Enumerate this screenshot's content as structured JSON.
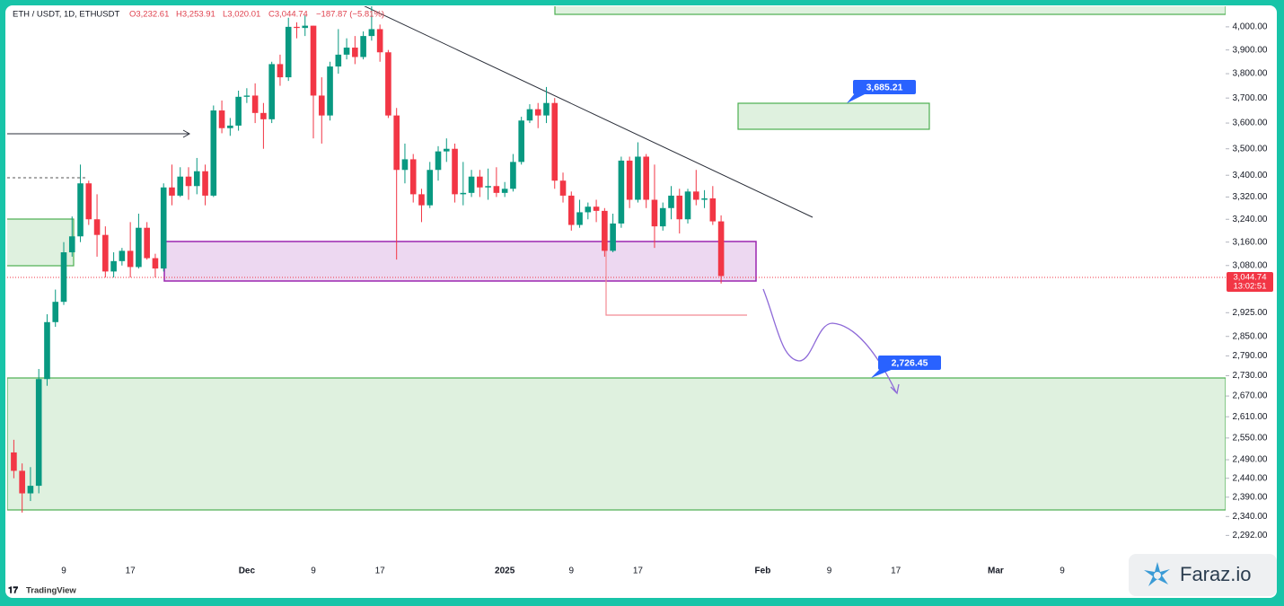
{
  "chart_data": {
    "type": "candlestick",
    "title": "ETH / USDT, 1D, ETHUSDT",
    "ohlc_header": [
      "O3,232.61",
      "H3,253.91",
      "L3,020.01",
      "C3,044.74",
      "−187.87 (−5.81%)"
    ],
    "categories": [
      null,
      null,
      null,
      null,
      null,
      null,
      "9",
      null,
      null,
      null,
      null,
      null,
      null,
      null,
      "17",
      null,
      null,
      null,
      null,
      null,
      null,
      null,
      null,
      null,
      null,
      null,
      null,
      null,
      "Dec",
      null,
      null,
      null,
      null,
      null,
      null,
      null,
      "9",
      null,
      null,
      null,
      null,
      null,
      null,
      null,
      "17",
      null,
      null,
      null,
      null,
      null,
      null,
      null,
      null,
      null,
      null,
      null,
      null,
      null,
      null,
      "2025",
      null,
      null,
      null,
      null,
      null,
      null,
      null,
      "9",
      null,
      null,
      null,
      null,
      null,
      null,
      null,
      "17",
      null,
      null,
      null,
      null,
      null,
      null,
      null,
      null,
      null,
      null,
      null,
      null,
      null,
      null,
      "Feb",
      null,
      null,
      null,
      null,
      null,
      null,
      null,
      "9",
      null,
      null,
      null,
      null,
      null,
      null,
      null,
      "17",
      null,
      null,
      null,
      null,
      null,
      null,
      null,
      null,
      null,
      null,
      null,
      "Mar",
      null,
      null,
      null,
      null,
      null,
      null,
      null,
      "9"
    ],
    "open": [
      2510,
      2460,
      2400,
      2420,
      2720,
      2895,
      2960,
      3125,
      3180,
      3370,
      3240,
      3185,
      3060,
      3095,
      3130,
      3075,
      3210,
      3105,
      3070,
      3355,
      3325,
      3395,
      3360,
      3415,
      3325,
      3650,
      3580,
      3590,
      3705,
      3710,
      3640,
      3615,
      3840,
      3785,
      4000,
      3995,
      4005,
      3710,
      3630,
      3830,
      3880,
      3910,
      3870,
      3960,
      3990,
      3890,
      3630,
      3420,
      3460,
      3330,
      3290,
      3420,
      3490,
      3500,
      3330,
      3335,
      3395,
      3355,
      3360,
      3335,
      3350,
      3450,
      3610,
      3655,
      3630,
      3680,
      3380,
      3325,
      3220,
      3265,
      3285,
      3270,
      3130,
      3225,
      3455,
      3310,
      3470,
      3310,
      3215,
      3280,
      3325,
      3240,
      3340,
      3310,
      3315,
      3232.61,
      null,
      null,
      null,
      null,
      null,
      null,
      null,
      null,
      null,
      null,
      null,
      null,
      null,
      null,
      null,
      null,
      null,
      null,
      null,
      null,
      null,
      null,
      null,
      null,
      null,
      null,
      null,
      null,
      null,
      null,
      null,
      null,
      null,
      null,
      null,
      null,
      null,
      null,
      null,
      null,
      null
    ],
    "high": [
      2545,
      2480,
      2470,
      2750,
      2920,
      3000,
      3160,
      3250,
      3440,
      3380,
      3330,
      3215,
      3125,
      3140,
      3230,
      3260,
      3230,
      3120,
      3370,
      3440,
      3430,
      3430,
      3465,
      3440,
      3670,
      3690,
      3620,
      3730,
      3740,
      3760,
      3680,
      3850,
      3880,
      4040,
      4020,
      4050,
      4005,
      3785,
      3850,
      3990,
      3950,
      3960,
      3980,
      4105,
      4010,
      3900,
      3660,
      3520,
      3480,
      3350,
      3450,
      3510,
      3540,
      3520,
      3450,
      3420,
      3420,
      3425,
      3430,
      3375,
      3480,
      3625,
      3675,
      3680,
      3745,
      3700,
      3410,
      3340,
      3310,
      3300,
      3310,
      3280,
      3260,
      3470,
      3470,
      3525,
      3480,
      3440,
      3300,
      3360,
      3350,
      3350,
      3420,
      3345,
      3360,
      3253.91,
      null,
      null,
      null,
      null,
      null,
      null,
      null,
      null,
      null,
      null,
      null,
      null,
      null,
      null,
      null,
      null,
      null,
      null,
      null,
      null,
      null,
      null,
      null,
      null,
      null,
      null,
      null,
      null,
      null,
      null,
      null,
      null,
      null,
      null,
      null,
      null,
      null,
      null,
      null,
      null,
      null
    ],
    "low": [
      2440,
      2350,
      2380,
      2400,
      2700,
      2880,
      2950,
      3110,
      3160,
      3220,
      3110,
      3040,
      3040,
      3080,
      3040,
      3070,
      3100,
      3040,
      3060,
      3290,
      3320,
      3310,
      3330,
      3290,
      3320,
      3560,
      3550,
      3570,
      3680,
      3600,
      3500,
      3600,
      3750,
      3770,
      3950,
      3960,
      3540,
      3520,
      3610,
      3800,
      3860,
      3840,
      3860,
      3940,
      3850,
      3620,
      3100,
      3370,
      3300,
      3230,
      3280,
      3380,
      3450,
      3300,
      3290,
      3320,
      3320,
      3310,
      3320,
      3320,
      3340,
      3440,
      3600,
      3580,
      3600,
      3350,
      3300,
      3200,
      3210,
      3240,
      3230,
      3110,
      3125,
      3210,
      3280,
      3300,
      3280,
      3140,
      3200,
      3240,
      3190,
      3225,
      3290,
      3280,
      3220,
      3020.01,
      null,
      null,
      null,
      null,
      null,
      null,
      null,
      null,
      null,
      null,
      null,
      null,
      null,
      null,
      null,
      null,
      null,
      null,
      null,
      null,
      null,
      null,
      null,
      null,
      null,
      null,
      null,
      null,
      null,
      null,
      null,
      null,
      null,
      null,
      null,
      null,
      null,
      null,
      null,
      null,
      null
    ],
    "close": [
      2460,
      2400,
      2420,
      2720,
      2895,
      2960,
      3125,
      3180,
      3370,
      3240,
      3185,
      3060,
      3095,
      3130,
      3075,
      3210,
      3105,
      3070,
      3355,
      3325,
      3395,
      3360,
      3415,
      3325,
      3650,
      3580,
      3590,
      3705,
      3710,
      3640,
      3615,
      3840,
      3785,
      4000,
      3995,
      4005,
      3710,
      3630,
      3830,
      3880,
      3910,
      3870,
      3960,
      3990,
      3890,
      3630,
      3420,
      3460,
      3330,
      3290,
      3420,
      3490,
      3500,
      3330,
      3335,
      3395,
      3355,
      3360,
      3335,
      3350,
      3450,
      3610,
      3655,
      3630,
      3680,
      3380,
      3325,
      3220,
      3265,
      3285,
      3270,
      3130,
      3225,
      3455,
      3310,
      3470,
      3310,
      3215,
      3280,
      3325,
      3240,
      3340,
      3310,
      3315,
      3232.61,
      3044.74,
      null,
      null,
      null,
      null,
      null,
      null,
      null,
      null,
      null,
      null,
      null,
      null,
      null,
      null,
      null,
      null,
      null,
      null,
      null,
      null,
      null,
      null,
      null,
      null,
      null,
      null,
      null,
      null,
      null,
      null,
      null,
      null,
      null,
      null,
      null,
      null,
      null,
      null,
      null,
      null,
      null
    ],
    "up_color": "#089981",
    "down_color": "#f23645",
    "log_scale": true,
    "ylim": [
      2235,
      4087
    ],
    "yticks": [
      {
        "value": 4000,
        "label": "4,000.00"
      },
      {
        "value": 3900,
        "label": "3,900.00"
      },
      {
        "value": 3800,
        "label": "3,800.00"
      },
      {
        "value": 3700,
        "label": "3,700.00"
      },
      {
        "value": 3600,
        "label": "3,600.00"
      },
      {
        "value": 3500,
        "label": "3,500.00"
      },
      {
        "value": 3400,
        "label": "3,400.00"
      },
      {
        "value": 3320,
        "label": "3,320.00"
      },
      {
        "value": 3240,
        "label": "3,240.00"
      },
      {
        "value": 3160,
        "label": "3,160.00"
      },
      {
        "value": 3080,
        "label": "3,080.00"
      },
      {
        "value": 2925,
        "label": "2,925.00"
      },
      {
        "value": 2850,
        "label": "2,850.00"
      },
      {
        "value": 2790,
        "label": "2,790.00"
      },
      {
        "value": 2730,
        "label": "2,730.00"
      },
      {
        "value": 2670,
        "label": "2,670.00"
      },
      {
        "value": 2610,
        "label": "2,610.00"
      },
      {
        "value": 2550,
        "label": "2,550.00"
      },
      {
        "value": 2490,
        "label": "2,490.00"
      },
      {
        "value": 2440,
        "label": "2,440.00"
      },
      {
        "value": 2390,
        "label": "2,390.00"
      },
      {
        "value": 2340,
        "label": "2,340.00"
      },
      {
        "value": 2292,
        "label": "2,292.00"
      }
    ],
    "last_price_label": "3,044.74",
    "countdown": "13:02:51",
    "annotations": [
      "3,685.21",
      "2,726.45"
    ],
    "source": "TradingView",
    "watermark": "Faraz.io"
  }
}
